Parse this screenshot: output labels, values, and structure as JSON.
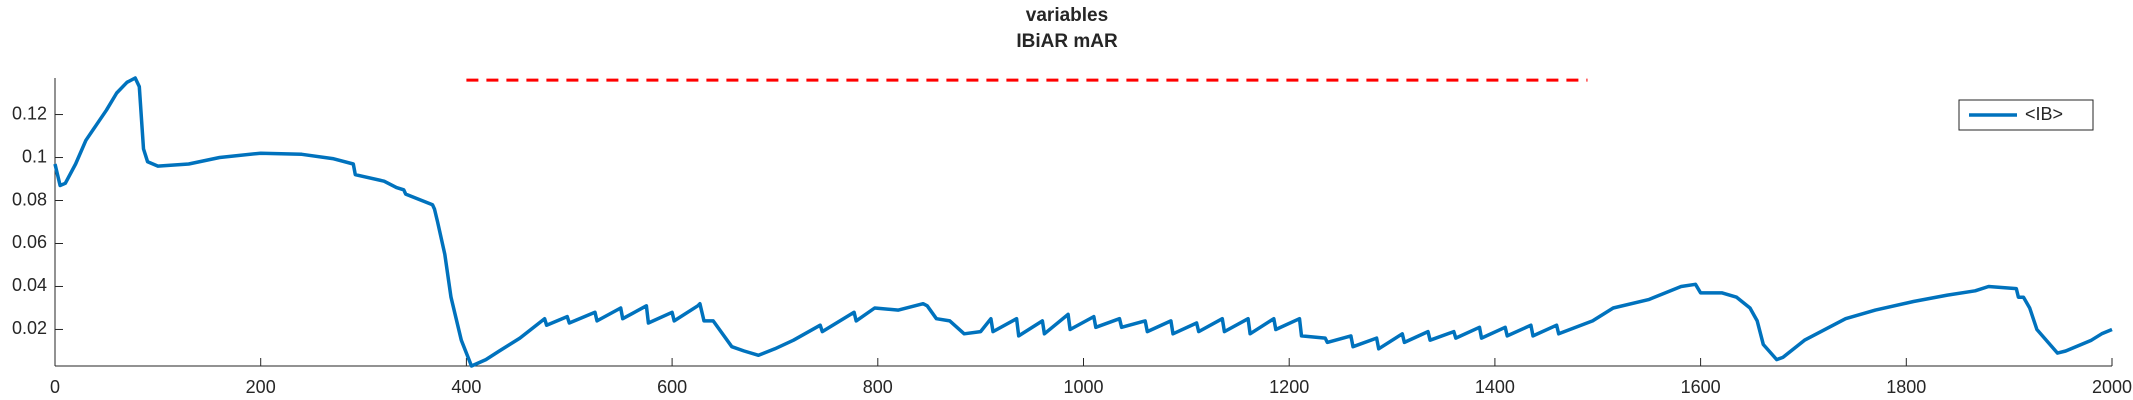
{
  "chart_data": {
    "type": "line",
    "title": "variables",
    "subtitle": "IBiAR mAR",
    "series": [
      {
        "name": "<IB>",
        "color": "#0072bd",
        "x": [
          0,
          5,
          10,
          20,
          30,
          40,
          50,
          60,
          70,
          78,
          82,
          86,
          90,
          100,
          130,
          160,
          200,
          240,
          270,
          290,
          292,
          320,
          332,
          339,
          341,
          367,
          369,
          372,
          379,
          385,
          395,
          405,
          419,
          432,
          452,
          476,
          478,
          498,
          500,
          525,
          527,
          550,
          552,
          575,
          577,
          600,
          602,
          625,
          627,
          631,
          640,
          658,
          670,
          684,
          700,
          718,
          744,
          746,
          777,
          779,
          797,
          820,
          844,
          848,
          857,
          870,
          884,
          900,
          910,
          912,
          935,
          937,
          960,
          962,
          985,
          987,
          1010,
          1012,
          1035,
          1037,
          1060,
          1062,
          1085,
          1087,
          1110,
          1112,
          1135,
          1137,
          1160,
          1162,
          1185,
          1187,
          1210,
          1212,
          1235,
          1237,
          1260,
          1262,
          1285,
          1287,
          1310,
          1312,
          1335,
          1337,
          1360,
          1362,
          1385,
          1387,
          1410,
          1412,
          1435,
          1437,
          1460,
          1462,
          1495,
          1515,
          1550,
          1581,
          1595,
          1600,
          1621,
          1635,
          1648,
          1655,
          1661,
          1674,
          1680,
          1701,
          1741,
          1770,
          1807,
          1840,
          1867,
          1880,
          1907,
          1909,
          1914,
          1920,
          1927,
          1947,
          1955,
          1980,
          1990,
          2000
        ],
        "values": [
          0.097,
          0.087,
          0.088,
          0.097,
          0.108,
          0.115,
          0.122,
          0.13,
          0.135,
          0.137,
          0.133,
          0.104,
          0.098,
          0.096,
          0.097,
          0.1,
          0.102,
          0.1015,
          0.0995,
          0.097,
          0.092,
          0.089,
          0.086,
          0.085,
          0.083,
          0.078,
          0.076,
          0.07,
          0.055,
          0.035,
          0.015,
          0.003,
          0.006,
          0.01,
          0.016,
          0.025,
          0.022,
          0.026,
          0.023,
          0.028,
          0.024,
          0.03,
          0.025,
          0.031,
          0.023,
          0.028,
          0.024,
          0.031,
          0.032,
          0.024,
          0.024,
          0.012,
          0.01,
          0.008,
          0.011,
          0.015,
          0.022,
          0.019,
          0.028,
          0.024,
          0.03,
          0.029,
          0.032,
          0.031,
          0.025,
          0.024,
          0.018,
          0.019,
          0.025,
          0.019,
          0.025,
          0.017,
          0.024,
          0.018,
          0.027,
          0.02,
          0.026,
          0.021,
          0.025,
          0.021,
          0.024,
          0.019,
          0.024,
          0.018,
          0.023,
          0.019,
          0.025,
          0.019,
          0.025,
          0.018,
          0.025,
          0.02,
          0.025,
          0.017,
          0.016,
          0.014,
          0.017,
          0.012,
          0.016,
          0.011,
          0.018,
          0.014,
          0.019,
          0.015,
          0.019,
          0.016,
          0.021,
          0.016,
          0.021,
          0.017,
          0.022,
          0.017,
          0.022,
          0.018,
          0.024,
          0.03,
          0.034,
          0.04,
          0.041,
          0.037,
          0.037,
          0.035,
          0.03,
          0.024,
          0.013,
          0.006,
          0.007,
          0.015,
          0.025,
          0.029,
          0.033,
          0.036,
          0.038,
          0.04,
          0.039,
          0.035,
          0.035,
          0.03,
          0.02,
          0.009,
          0.01,
          0.015,
          0.018,
          0.02
        ]
      }
    ],
    "reference_line": {
      "x": [
        400,
        1490
      ],
      "y": 0.136,
      "color": "#ff0000"
    },
    "xlim": [
      0,
      2000
    ],
    "xticks": [
      0,
      200,
      400,
      600,
      800,
      1000,
      1200,
      1400,
      1600,
      1800,
      2000
    ],
    "ylim": [
      0.003,
      0.137
    ],
    "yticks": [
      0.02,
      0.04,
      0.06,
      0.08,
      0.1,
      0.12
    ],
    "legend": "upper right"
  }
}
